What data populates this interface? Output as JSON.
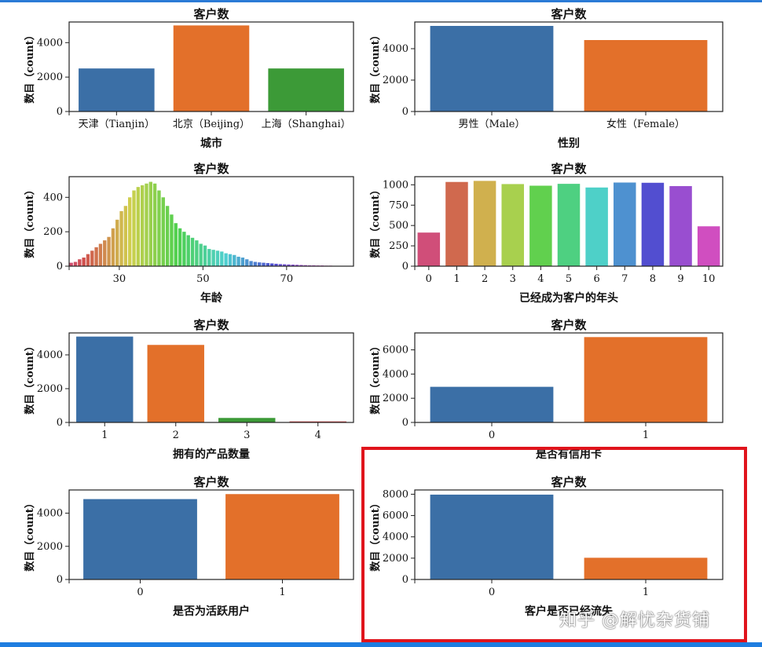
{
  "colors": {
    "top_line": "#2b7bd6",
    "bottom_bar": "#1e7de0",
    "highlight": "#e0141c",
    "palette": [
      "#3b6fa6",
      "#e3702a",
      "#3c9a37",
      "#c33c3c"
    ]
  },
  "highlight_box": {
    "panel": "exited"
  },
  "watermark": "知乎 @解忧杂货铺",
  "chart_data": [
    {
      "id": "city",
      "type": "bar",
      "title": "客户数",
      "ylabel": "数目（count）",
      "xlabel": "城市",
      "categories": [
        "天津（Tianjin）",
        "北京（Beijing）",
        "上海（Shanghai）"
      ],
      "values": [
        2500,
        5000,
        2500
      ],
      "ylim": [
        0,
        5200
      ],
      "yticks": [
        0,
        2000,
        4000
      ],
      "grid": false
    },
    {
      "id": "gender",
      "type": "bar",
      "title": "客户数",
      "ylabel": "数目（count）",
      "xlabel": "性别",
      "categories": [
        "男性（Male）",
        "女性（Female）"
      ],
      "values": [
        5450,
        4550
      ],
      "ylim": [
        0,
        5700
      ],
      "yticks": [
        0,
        2000,
        4000
      ],
      "grid": false
    },
    {
      "id": "age",
      "type": "bar",
      "title": "客户数",
      "ylabel": "数目（count）",
      "xlabel": "年龄",
      "x": [
        18,
        19,
        20,
        21,
        22,
        23,
        24,
        25,
        26,
        27,
        28,
        29,
        30,
        31,
        32,
        33,
        34,
        35,
        36,
        37,
        38,
        39,
        40,
        41,
        42,
        43,
        44,
        45,
        46,
        47,
        48,
        49,
        50,
        51,
        52,
        53,
        54,
        55,
        56,
        57,
        58,
        59,
        60,
        61,
        62,
        63,
        64,
        65,
        66,
        67,
        68,
        69,
        70,
        71,
        72,
        73,
        74,
        75,
        76,
        77,
        78,
        79,
        80,
        81,
        82,
        83,
        84,
        85
      ],
      "values": [
        20,
        25,
        40,
        50,
        70,
        90,
        110,
        130,
        150,
        170,
        220,
        270,
        320,
        350,
        400,
        440,
        460,
        470,
        480,
        490,
        480,
        440,
        400,
        350,
        300,
        250,
        220,
        200,
        180,
        165,
        150,
        130,
        120,
        100,
        95,
        90,
        85,
        75,
        70,
        65,
        55,
        50,
        40,
        30,
        25,
        22,
        20,
        18,
        16,
        14,
        12,
        11,
        10,
        9,
        8,
        7,
        6,
        5,
        5,
        4,
        4,
        3,
        3,
        2,
        2,
        2,
        1,
        1
      ],
      "xlim": [
        18,
        86
      ],
      "ylim": [
        0,
        520
      ],
      "xticks": [
        30,
        50,
        70
      ],
      "yticks": [
        0,
        200,
        400
      ],
      "grid": false
    },
    {
      "id": "tenure",
      "type": "bar",
      "title": "客户数",
      "ylabel": "数目（count）",
      "xlabel": "已经成为客户的年头",
      "categories": [
        "0",
        "1",
        "2",
        "3",
        "4",
        "5",
        "6",
        "7",
        "8",
        "9",
        "10"
      ],
      "values": [
        413,
        1035,
        1048,
        1009,
        989,
        1012,
        967,
        1028,
        1025,
        984,
        490
      ],
      "ylim": [
        0,
        1100
      ],
      "yticks": [
        0,
        250,
        500,
        750,
        1000
      ],
      "grid": false
    },
    {
      "id": "products",
      "type": "bar",
      "title": "客户数",
      "ylabel": "数目（count）",
      "xlabel": "拥有的产品数量",
      "categories": [
        "1",
        "2",
        "3",
        "4"
      ],
      "values": [
        5084,
        4590,
        266,
        60
      ],
      "ylim": [
        0,
        5300
      ],
      "yticks": [
        0,
        2000,
        4000
      ],
      "grid": false
    },
    {
      "id": "credit_card",
      "type": "bar",
      "title": "客户数",
      "ylabel": "数目（count）",
      "xlabel": "是否有信用卡",
      "categories": [
        "0",
        "1"
      ],
      "values": [
        2945,
        7055
      ],
      "ylim": [
        0,
        7400
      ],
      "yticks": [
        0,
        2000,
        4000,
        6000
      ],
      "grid": false
    },
    {
      "id": "active",
      "type": "bar",
      "title": "客户数",
      "ylabel": "数目（count）",
      "xlabel": "是否为活跃用户",
      "categories": [
        "0",
        "1"
      ],
      "values": [
        4849,
        5151
      ],
      "ylim": [
        0,
        5400
      ],
      "yticks": [
        0,
        2000,
        4000
      ],
      "grid": false
    },
    {
      "id": "exited",
      "type": "bar",
      "title": "客户数",
      "ylabel": "数目（count）",
      "xlabel": "客户是否已经流失",
      "categories": [
        "0",
        "1"
      ],
      "values": [
        7963,
        2037
      ],
      "ylim": [
        0,
        8400
      ],
      "yticks": [
        0,
        2000,
        4000,
        6000,
        8000
      ],
      "grid": false
    }
  ]
}
